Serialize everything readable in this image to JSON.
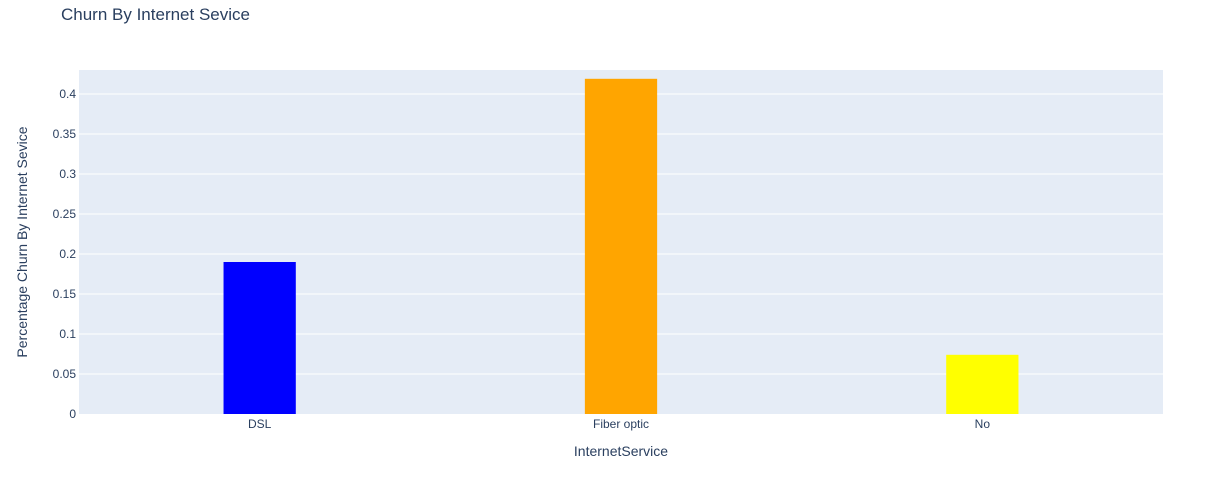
{
  "chart_data": {
    "type": "bar",
    "title": "Churn By Internet Sevice",
    "xlabel": "InternetService",
    "ylabel": "Percentage Churn By Internet Sevice",
    "categories": [
      "DSL",
      "Fiber optic",
      "No"
    ],
    "values": [
      0.19,
      0.419,
      0.074
    ],
    "colors": [
      "#0000ff",
      "#ffa500",
      "#ffff00"
    ],
    "ylim": [
      0,
      0.43
    ],
    "yticks": [
      0,
      0.05,
      0.1,
      0.15,
      0.2,
      0.25,
      0.3,
      0.35,
      0.4
    ],
    "ytick_labels": [
      "0",
      "0.05",
      "0.1",
      "0.15",
      "0.2",
      "0.25",
      "0.3",
      "0.35",
      "0.4"
    ],
    "grid": true,
    "background": "#e5ecf6"
  }
}
